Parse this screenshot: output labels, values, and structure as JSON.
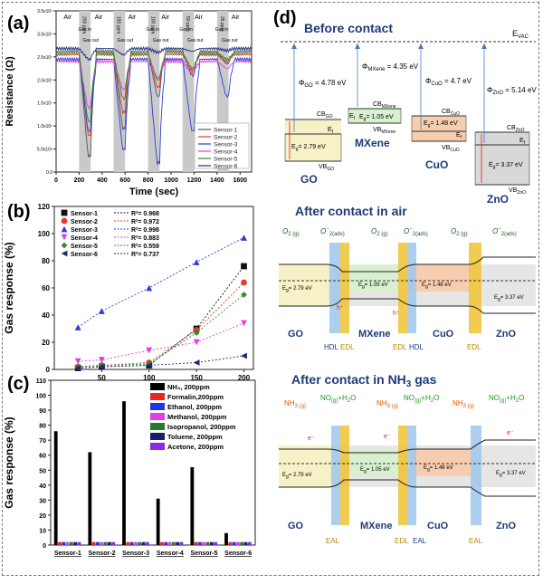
{
  "chart_data": [
    {
      "type": "line",
      "panel_label": "(a)",
      "title": "",
      "xlabel": "Time (sec)",
      "ylabel": "Resistance (Ω)",
      "xlim": [
        0,
        1700
      ],
      "ylim": [
        0,
        35000000
      ],
      "x_ticks": [
        "0",
        "200",
        "400",
        "600",
        "800",
        "1000",
        "1200",
        "1400",
        "1600"
      ],
      "y_ticks": [
        "0.0",
        "5.0x10⁶",
        "1.0x10⁷",
        "1.5x10⁷",
        "2.0x10⁷",
        "2.5x10⁷",
        "3.0x10⁷",
        "3.5x10⁷"
      ],
      "gas_bands": [
        {
          "start": 200,
          "end": 300,
          "label": "200 ppm"
        },
        {
          "start": 500,
          "end": 600,
          "label": "150 ppm"
        },
        {
          "start": 800,
          "end": 900,
          "label": "100 ppm"
        },
        {
          "start": 1100,
          "end": 1200,
          "label": "50 ppm"
        },
        {
          "start": 1400,
          "end": 1500,
          "label": "25 ppm"
        }
      ],
      "air_labels": [
        {
          "x": 100,
          "text": "Air"
        },
        {
          "x": 370,
          "text": "Air"
        },
        {
          "x": 660,
          "text": "Air"
        },
        {
          "x": 950,
          "text": "Air"
        },
        {
          "x": 1240,
          "text": "Air"
        },
        {
          "x": 1560,
          "text": "Air"
        }
      ],
      "gas_in_labels": [
        {
          "x": 250,
          "text": "Gas in"
        },
        {
          "x": 840,
          "text": "Gas in"
        },
        {
          "x": 1130,
          "text": "Gas in"
        },
        {
          "x": 1440,
          "text": "Gas in"
        }
      ],
      "gas_out_labels": [
        {
          "x": 300,
          "text": "Gas out"
        },
        {
          "x": 600,
          "text": "Gas out"
        },
        {
          "x": 910,
          "text": "Gas out"
        },
        {
          "x": 1210,
          "text": "Gas out"
        },
        {
          "x": 1510,
          "text": "Gas out"
        }
      ],
      "series": [
        {
          "name": "Sensor-1",
          "color": "#555555",
          "baseline": 26200000,
          "dips": [
            3500000,
            9500000,
            16500000,
            21000000,
            23500000
          ]
        },
        {
          "name": "Sensor-2",
          "color": "#e53a2a",
          "baseline": 25500000,
          "dips": [
            8000000,
            13000000,
            18500000,
            22000000,
            24000000
          ]
        },
        {
          "name": "Sensor-3",
          "color": "#2b3ed8",
          "baseline": 24500000,
          "dips": [
            9000000,
            5000000,
            2000000,
            9000000,
            16500000
          ]
        },
        {
          "name": "Sensor-4",
          "color": "#e040e0",
          "baseline": 24000000,
          "dips": [
            14000000,
            18000000,
            20500000,
            21500000,
            22500000
          ]
        },
        {
          "name": "Sensor-5",
          "color": "#2e8b2e",
          "baseline": 25800000,
          "dips": [
            11000000,
            16000000,
            20000000,
            22500000,
            24500000
          ]
        },
        {
          "name": "Sensor-6",
          "color": "#1a2a7a",
          "baseline": 26800000,
          "dips": [
            24500000,
            25500000,
            26000000,
            26200000,
            26400000
          ]
        }
      ]
    },
    {
      "type": "scatter",
      "panel_label": "(b)",
      "title": "",
      "xlabel": "",
      "ylabel": "Gas response (%)",
      "xlim": [
        0,
        210
      ],
      "ylim": [
        0,
        120
      ],
      "x_ticks": [
        "50",
        "100",
        "150",
        "200"
      ],
      "y_ticks": [
        "0",
        "20",
        "40",
        "60",
        "80",
        "100",
        "120"
      ],
      "x": [
        25,
        50,
        100,
        150,
        200
      ],
      "series": [
        {
          "name": "Sensor-1",
          "color": "#111111",
          "marker": "square",
          "values": [
            1,
            2,
            3,
            30,
            76
          ],
          "r2": "R²= 0.968"
        },
        {
          "name": "Sensor-2",
          "color": "#e53a2a",
          "marker": "circle",
          "values": [
            2,
            3,
            5,
            29,
            64
          ],
          "r2": "R²= 0.972"
        },
        {
          "name": "Sensor-3",
          "color": "#2b3ed8",
          "marker": "triangle-up",
          "values": [
            31,
            43,
            60,
            79,
            97
          ],
          "r2": "R²= 0.998"
        },
        {
          "name": "Sensor-4",
          "color": "#e040e0",
          "marker": "triangle-down",
          "values": [
            6,
            7,
            14,
            20,
            34
          ],
          "r2": "R²= 0.883"
        },
        {
          "name": "Sensor-5",
          "color": "#2e8b2e",
          "marker": "diamond",
          "values": [
            2,
            3,
            4,
            27,
            55
          ],
          "r2": "R²= 0.559"
        },
        {
          "name": "Sensor-6",
          "color": "#1a2a7a",
          "marker": "triangle-left",
          "values": [
            1,
            2,
            3,
            5,
            10
          ],
          "r2": "R²= 0.737"
        }
      ]
    },
    {
      "type": "bar",
      "panel_label": "(c)",
      "title": "",
      "xlabel": "",
      "ylabel": "Gas response (%)",
      "ylim": [
        0,
        110
      ],
      "y_ticks": [
        "0",
        "10",
        "20",
        "30",
        "40",
        "50",
        "60",
        "70",
        "80",
        "90",
        "100",
        "110"
      ],
      "categories": [
        "Sensor-1",
        "Sensor-2",
        "Sensor-3",
        "Sensor-4",
        "Sensor-5",
        "Sensor-6"
      ],
      "series": [
        {
          "name": "NH₃, 200ppm",
          "color": "#000000",
          "values": [
            76,
            62,
            96,
            31,
            52,
            8
          ]
        },
        {
          "name": "Formalin,200ppm",
          "color": "#e8281e",
          "values": [
            2,
            2,
            2,
            2,
            2,
            2
          ]
        },
        {
          "name": "Ethanol, 200ppm",
          "color": "#2135e0",
          "values": [
            2,
            2,
            2,
            2,
            2,
            2
          ]
        },
        {
          "name": "Methanol, 200ppm",
          "color": "#e040e0",
          "values": [
            2,
            2,
            2,
            2,
            2,
            2
          ]
        },
        {
          "name": "Isopropanol, 200ppm",
          "color": "#2a7a2a",
          "values": [
            2,
            2,
            2,
            2,
            2,
            2
          ]
        },
        {
          "name": "Toluene, 200ppm",
          "color": "#1a1a70",
          "values": [
            2,
            2,
            2,
            2,
            2,
            2
          ]
        },
        {
          "name": "Acetone, 200ppm",
          "color": "#8a2be2",
          "values": [
            2,
            2,
            2,
            2,
            2,
            2
          ]
        }
      ]
    }
  ],
  "diagram": {
    "panel_label": "(d)",
    "sec1": {
      "title": "Before contact",
      "evac": "E",
      "evac_sub": "VAC",
      "phi_go": "Φ",
      "phi_go_sub": "GO",
      "phi_go_val": " = 4.78 eV",
      "phi_mx": "Φ",
      "phi_mx_sub": "MXene",
      "phi_mx_val": " = 4.35 eV",
      "phi_cuo": "Φ",
      "phi_cuo_sub": "CuO",
      "phi_cuo_val": " = 4.7 eV",
      "phi_zno": "Φ",
      "phi_zno_sub": "ZnO",
      "phi_zno_val": " = 5.14 eV",
      "cb": "CB",
      "vb": "VB",
      "ef": "E",
      "ef_sub": "f",
      "eg": "E",
      "eg_sub": "g",
      "sub_go": "GO",
      "sub_mx": "MXene",
      "sub_cuo": "CuO",
      "sub_zno": "ZnO",
      "eg_go": "= 2.79 eV",
      "eg_mx": "= 1.05 eV",
      "eg_cuo": "= 1.48 eV",
      "eg_zno": "= 3.37 eV",
      "name_go": "GO",
      "name_mx": "MXene",
      "name_cuo": "CuO",
      "name_zno": "ZnO"
    },
    "sec2": {
      "title": "After contact in air",
      "o2": "O",
      "o2_sub": "2 (g)",
      "o2m": "O",
      "o2m_sub": "2(ads)",
      "o2m_sup": "−",
      "eg_go": "= 2.79 eV",
      "eg_mx": "= 1.05 eV",
      "eg_cuo": "= 1.48 eV",
      "eg_zno": "= 3.37 eV",
      "hplus": "h⁺",
      "hdl": "HDL",
      "edl": "EDL",
      "name_go": "GO",
      "name_mx": "MXene",
      "name_cuo": "CuO",
      "name_zno": "ZnO"
    },
    "sec3": {
      "title": "After contact in NH",
      "title_sub": "3",
      "title_end": " gas",
      "nh3": "NH",
      "nh3_sub": "3 (g)",
      "no": "NO",
      "no_sub": "(g)",
      "no_end": "+H",
      "no_sub2": "2",
      "no_end2": "O",
      "eminus": "e⁻",
      "eg_go": "= 2.79 eV",
      "eg_mx": "= 1.05 eV",
      "eg_cuo": "= 1.48 eV",
      "eg_zno": "= 3.37 eV",
      "eal": "EAL",
      "edl": "EDL",
      "name_go": "GO",
      "name_mx": "MXene",
      "name_cuo": "CuO",
      "name_zno": "ZnO"
    }
  }
}
